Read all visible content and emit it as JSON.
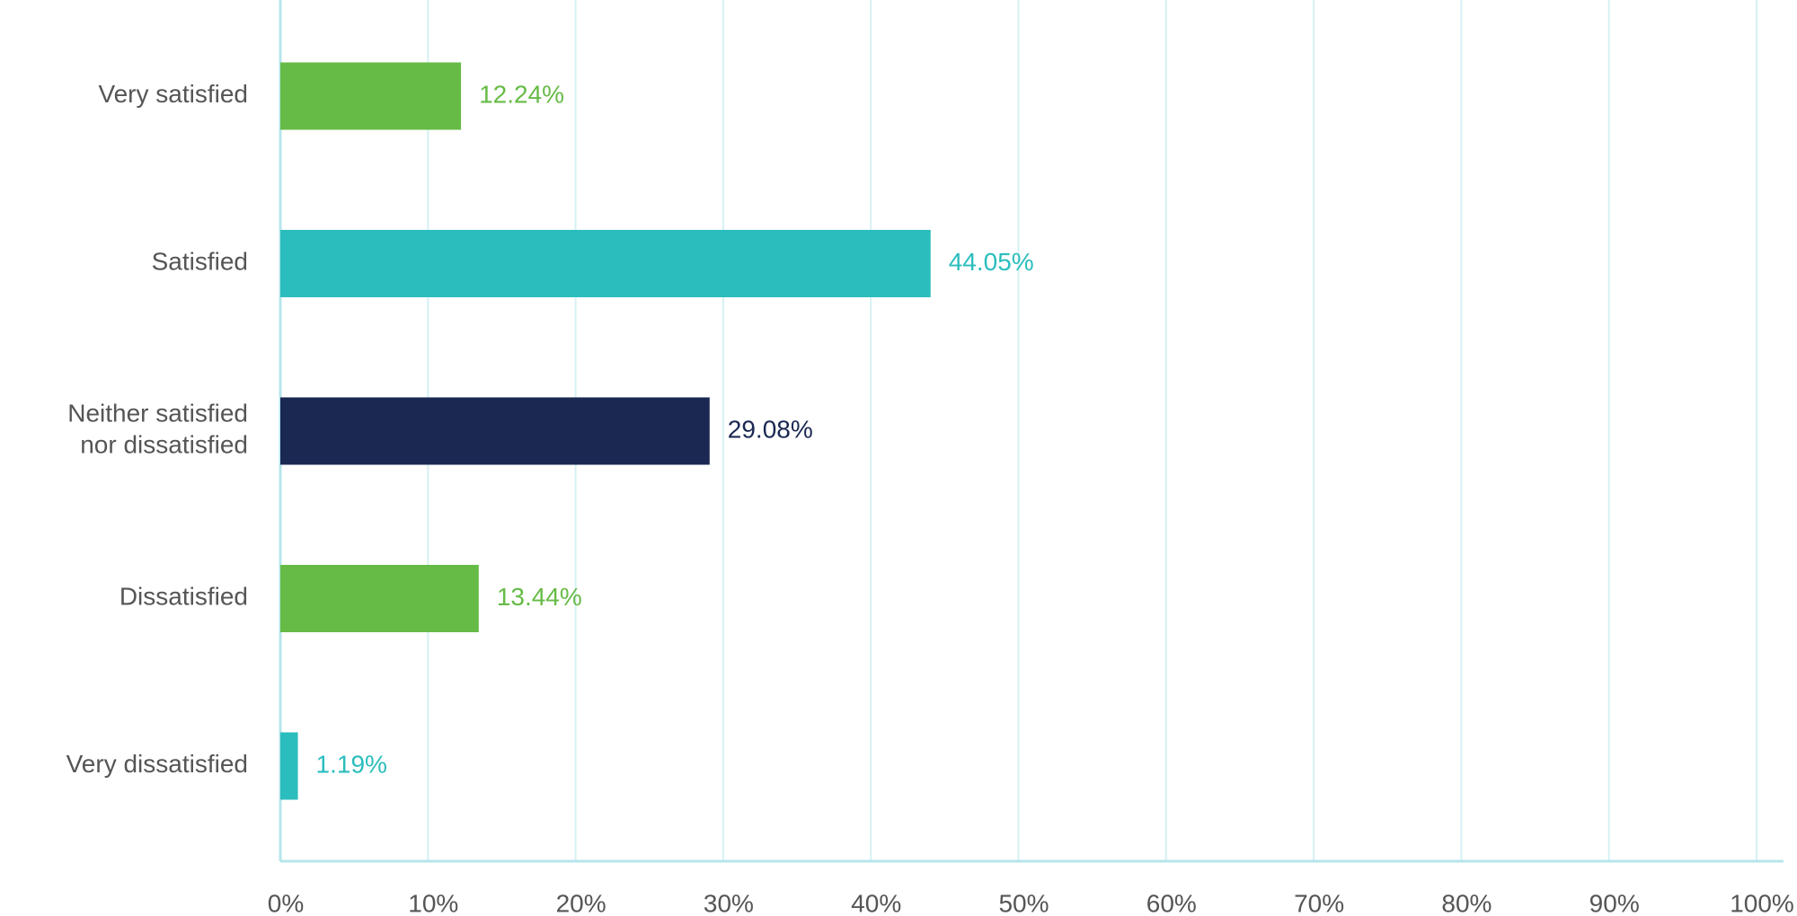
{
  "chart_data": {
    "type": "hbar",
    "categories": [
      [
        "Very satisfied"
      ],
      [
        "Satisfied"
      ],
      [
        "Neither satisfied",
        "nor dissatisfied"
      ],
      [
        "Dissatisfied"
      ],
      [
        "Very dissatisfied"
      ]
    ],
    "values": [
      12.24,
      44.05,
      29.08,
      13.44,
      1.19
    ],
    "value_labels": [
      "12.24%",
      "44.05%",
      "29.08%",
      "13.44%",
      "1.19%"
    ],
    "colors": [
      "#66bb46",
      "#2bbdbd",
      "#1a2852",
      "#66bb46",
      "#2bbdbd"
    ],
    "xlim": [
      0,
      100
    ],
    "xticks": [
      {
        "value": 0,
        "label": "0%"
      },
      {
        "value": 10,
        "label": "10%"
      },
      {
        "value": 20,
        "label": "20%"
      },
      {
        "value": 30,
        "label": "30%"
      },
      {
        "value": 40,
        "label": "40%"
      },
      {
        "value": 50,
        "label": "50%"
      },
      {
        "value": 60,
        "label": "60%"
      },
      {
        "value": 70,
        "label": "70%"
      },
      {
        "value": 80,
        "label": "80%"
      },
      {
        "value": 90,
        "label": "90%"
      },
      {
        "value": 100,
        "label": "100%"
      }
    ],
    "grid": true
  }
}
